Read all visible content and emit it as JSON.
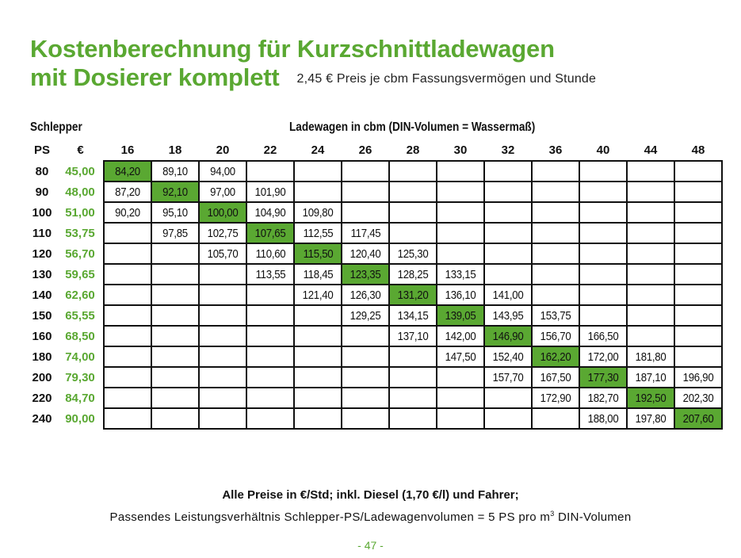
{
  "title": {
    "line1": "Kostenberechnung für Kurzschnittladewagen",
    "line2": "mit Dosierer komplett",
    "subtitle": "2,45 € Preis je cbm Fassungsvermögen und Stunde"
  },
  "labels": {
    "schlepper": "Schlepper",
    "ladewagen": "Ladewagen in cbm (DIN-Volumen = Wassermaß)",
    "ps": "PS",
    "euro": "€"
  },
  "capacities": [
    "16",
    "18",
    "20",
    "22",
    "24",
    "26",
    "28",
    "30",
    "32",
    "36",
    "40",
    "44",
    "48"
  ],
  "rows": [
    {
      "ps": "80",
      "eur": "45,00",
      "cells": [
        "84,20",
        "89,10",
        "94,00",
        "",
        "",
        "",
        "",
        "",
        "",
        "",
        "",
        "",
        ""
      ],
      "hl": 0
    },
    {
      "ps": "90",
      "eur": "48,00",
      "cells": [
        "87,20",
        "92,10",
        "97,00",
        "101,90",
        "",
        "",
        "",
        "",
        "",
        "",
        "",
        "",
        ""
      ],
      "hl": 1
    },
    {
      "ps": "100",
      "eur": "51,00",
      "cells": [
        "90,20",
        "95,10",
        "100,00",
        "104,90",
        "109,80",
        "",
        "",
        "",
        "",
        "",
        "",
        "",
        ""
      ],
      "hl": 2
    },
    {
      "ps": "110",
      "eur": "53,75",
      "cells": [
        "",
        "97,85",
        "102,75",
        "107,65",
        "112,55",
        "117,45",
        "",
        "",
        "",
        "",
        "",
        "",
        ""
      ],
      "hl": 3
    },
    {
      "ps": "120",
      "eur": "56,70",
      "cells": [
        "",
        "",
        "105,70",
        "110,60",
        "115,50",
        "120,40",
        "125,30",
        "",
        "",
        "",
        "",
        "",
        ""
      ],
      "hl": 4
    },
    {
      "ps": "130",
      "eur": "59,65",
      "cells": [
        "",
        "",
        "",
        "113,55",
        "118,45",
        "123,35",
        "128,25",
        "133,15",
        "",
        "",
        "",
        "",
        ""
      ],
      "hl": 5
    },
    {
      "ps": "140",
      "eur": "62,60",
      "cells": [
        "",
        "",
        "",
        "",
        "121,40",
        "126,30",
        "131,20",
        "136,10",
        "141,00",
        "",
        "",
        "",
        ""
      ],
      "hl": 6
    },
    {
      "ps": "150",
      "eur": "65,55",
      "cells": [
        "",
        "",
        "",
        "",
        "",
        "129,25",
        "134,15",
        "139,05",
        "143,95",
        "153,75",
        "",
        "",
        ""
      ],
      "hl": 7
    },
    {
      "ps": "160",
      "eur": "68,50",
      "cells": [
        "",
        "",
        "",
        "",
        "",
        "",
        "137,10",
        "142,00",
        "146,90",
        "156,70",
        "166,50",
        "",
        ""
      ],
      "hl": 8
    },
    {
      "ps": "180",
      "eur": "74,00",
      "cells": [
        "",
        "",
        "",
        "",
        "",
        "",
        "",
        "147,50",
        "152,40",
        "162,20",
        "172,00",
        "181,80",
        ""
      ],
      "hl": 9
    },
    {
      "ps": "200",
      "eur": "79,30",
      "cells": [
        "",
        "",
        "",
        "",
        "",
        "",
        "",
        "",
        "157,70",
        "167,50",
        "177,30",
        "187,10",
        "196,90"
      ],
      "hl": 10
    },
    {
      "ps": "220",
      "eur": "84,70",
      "cells": [
        "",
        "",
        "",
        "",
        "",
        "",
        "",
        "",
        "",
        "172,90",
        "182,70",
        "192,50",
        "202,30"
      ],
      "hl": 11
    },
    {
      "ps": "240",
      "eur": "90,00",
      "cells": [
        "",
        "",
        "",
        "",
        "",
        "",
        "",
        "",
        "",
        "",
        "188,00",
        "197,80",
        "207,60"
      ],
      "hl": 12
    }
  ],
  "footer": {
    "bold": "Alle Preise in €/Std; inkl. Diesel (1,70 €/l) und Fahrer;",
    "note_before": "Passendes Leistungsverhältnis Schlepper-PS/Ladewagenvolumen = 5 PS pro m",
    "note_sup": "3",
    "note_after": " DIN-Volumen",
    "page": "- 47 -"
  },
  "colors": {
    "accent_green": "#5aa832",
    "text": "#111111",
    "border": "#111111"
  }
}
